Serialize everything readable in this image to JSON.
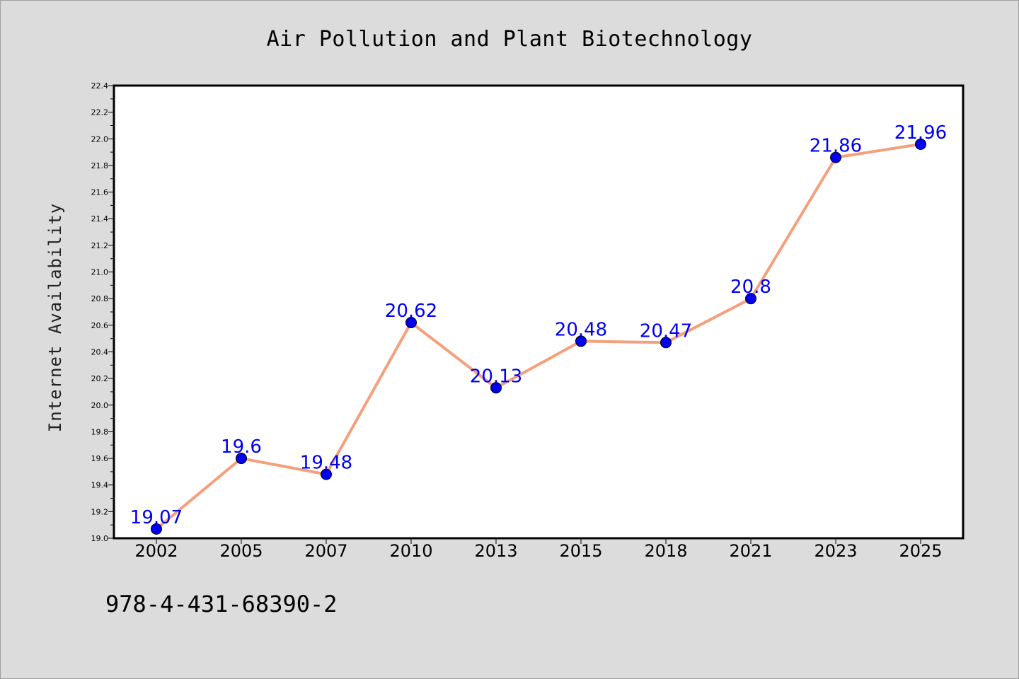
{
  "colors": {
    "background": "#dcdcdc",
    "plot_background": "#ffffff",
    "line": "#f4a07c",
    "marker": "#0000ee",
    "data_label": "#0000ee"
  },
  "footer": {
    "isbn": "978-4-431-68390-2"
  },
  "chart_data": {
    "type": "line",
    "title": "Air Pollution and Plant Biotechnology",
    "xlabel": "",
    "ylabel": "Internet Availability",
    "categories": [
      "2002",
      "2005",
      "2007",
      "2010",
      "2013",
      "2015",
      "2018",
      "2021",
      "2023",
      "2025"
    ],
    "series": [
      {
        "values": [
          19.07,
          19.6,
          19.48,
          20.62,
          20.13,
          20.48,
          20.47,
          20.8,
          21.86,
          21.96
        ],
        "labels": [
          "19.07",
          "19.6",
          "19.48",
          "20.62",
          "20.13",
          "20.48",
          "20.47",
          "20.8",
          "21.86",
          "21.96"
        ]
      }
    ],
    "ylim": [
      19.0,
      22.4
    ],
    "yticks": [
      "19.0",
      "19.2",
      "19.4",
      "19.6",
      "19.8",
      "20.0",
      "20.2",
      "20.4",
      "20.6",
      "20.8",
      "21.0",
      "21.2",
      "21.4",
      "21.6",
      "21.8",
      "22.0",
      "22.2",
      "22.4"
    ],
    "grid": false,
    "legend": "none"
  }
}
